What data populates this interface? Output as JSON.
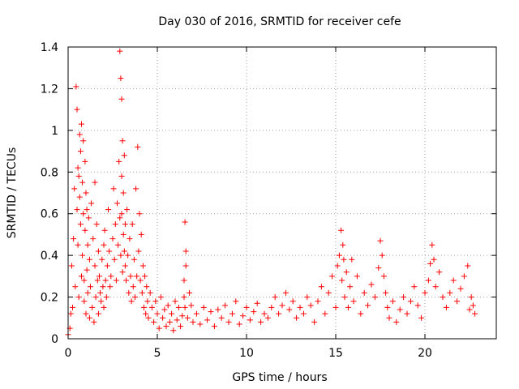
{
  "chart_data": {
    "type": "scatter",
    "title": "Day 030 of 2016, SRMTID for receiver cefe",
    "xlabel": "GPS time / hours",
    "ylabel": "SRMTID / TECUs",
    "xlim": [
      0,
      24
    ],
    "ylim": [
      0,
      1.4
    ],
    "x_ticks": [
      0,
      5,
      10,
      15,
      20
    ],
    "x_tick_labels": [
      "0",
      "5",
      "10",
      "15",
      "20"
    ],
    "y_ticks": [
      0,
      0.2,
      0.4,
      0.6,
      0.8,
      1.0,
      1.2,
      1.4
    ],
    "y_tick_labels": [
      "0",
      "0.2",
      "0.4",
      "0.6",
      "0.8",
      "1",
      "1.2",
      "1.4"
    ],
    "grid": true,
    "marker": "plus",
    "series": [
      {
        "name": "SRMTID",
        "color": "#ff0000",
        "x": [
          0.0,
          0.1,
          0.15,
          0.2,
          0.25,
          0.3,
          0.35,
          0.4,
          0.45,
          0.5,
          0.5,
          0.55,
          0.55,
          0.6,
          0.6,
          0.65,
          0.65,
          0.7,
          0.7,
          0.75,
          0.75,
          0.8,
          0.8,
          0.85,
          0.85,
          0.9,
          0.9,
          0.95,
          0.95,
          1.0,
          1.0,
          1.05,
          1.05,
          1.1,
          1.1,
          1.15,
          1.2,
          1.2,
          1.25,
          1.3,
          1.35,
          1.4,
          1.45,
          1.5,
          1.5,
          1.55,
          1.6,
          1.65,
          1.7,
          1.7,
          1.75,
          1.8,
          1.85,
          1.9,
          1.95,
          2.0,
          2.0,
          2.05,
          2.1,
          2.15,
          2.2,
          2.25,
          2.3,
          2.35,
          2.4,
          2.5,
          2.55,
          2.6,
          2.65,
          2.7,
          2.75,
          2.8,
          2.85,
          2.9,
          2.9,
          2.95,
          2.95,
          3.0,
          3.0,
          3.0,
          3.05,
          3.05,
          3.1,
          3.1,
          3.15,
          3.15,
          3.2,
          3.2,
          3.25,
          3.3,
          3.35,
          3.4,
          3.45,
          3.5,
          3.55,
          3.6,
          3.65,
          3.7,
          3.75,
          3.8,
          3.85,
          3.9,
          3.95,
          4.0,
          4.05,
          4.1,
          4.15,
          4.2,
          4.25,
          4.3,
          4.35,
          4.4,
          4.45,
          4.5,
          4.6,
          4.7,
          4.8,
          4.9,
          5.0,
          5.1,
          5.2,
          5.3,
          5.4,
          5.5,
          5.6,
          5.7,
          5.8,
          5.9,
          6.0,
          6.1,
          6.2,
          6.3,
          6.4,
          6.5,
          6.5,
          6.55,
          6.55,
          6.6,
          6.6,
          6.7,
          6.8,
          6.9,
          7.0,
          7.2,
          7.4,
          7.6,
          7.8,
          8.0,
          8.2,
          8.4,
          8.6,
          8.8,
          9.0,
          9.2,
          9.4,
          9.6,
          9.8,
          10.0,
          10.2,
          10.4,
          10.6,
          10.8,
          11.0,
          11.2,
          11.4,
          11.6,
          11.8,
          12.0,
          12.2,
          12.4,
          12.6,
          12.8,
          13.0,
          13.2,
          13.4,
          13.6,
          13.8,
          14.0,
          14.2,
          14.4,
          14.6,
          14.8,
          15.0,
          15.1,
          15.2,
          15.3,
          15.35,
          15.4,
          15.45,
          15.5,
          15.6,
          15.7,
          15.8,
          15.9,
          16.0,
          16.2,
          16.4,
          16.6,
          16.8,
          17.0,
          17.2,
          17.4,
          17.5,
          17.6,
          17.7,
          17.8,
          17.9,
          18.0,
          18.2,
          18.4,
          18.6,
          18.8,
          19.0,
          19.2,
          19.4,
          19.6,
          19.8,
          20.0,
          20.2,
          20.3,
          20.4,
          20.5,
          20.6,
          20.8,
          21.0,
          21.2,
          21.4,
          21.6,
          21.8,
          22.0,
          22.2,
          22.4,
          22.5,
          22.6,
          22.7,
          22.8
        ],
        "y": [
          0.02,
          0.05,
          0.12,
          0.35,
          0.15,
          0.48,
          0.72,
          0.25,
          1.21,
          0.62,
          1.1,
          0.45,
          0.82,
          0.78,
          0.2,
          0.68,
          0.98,
          0.55,
          0.9,
          1.03,
          0.3,
          0.75,
          0.4,
          0.6,
          0.95,
          0.28,
          0.18,
          0.52,
          0.85,
          0.7,
          0.12,
          0.33,
          0.62,
          0.22,
          0.45,
          0.58,
          0.1,
          0.38,
          0.25,
          0.65,
          0.15,
          0.48,
          0.08,
          0.75,
          0.35,
          0.2,
          0.55,
          0.28,
          0.12,
          0.42,
          0.3,
          0.22,
          0.18,
          0.38,
          0.25,
          0.15,
          0.45,
          0.52,
          0.28,
          0.2,
          0.35,
          0.62,
          0.42,
          0.25,
          0.3,
          0.48,
          0.72,
          0.38,
          0.55,
          0.28,
          0.65,
          0.45,
          0.85,
          0.58,
          1.38,
          1.25,
          0.4,
          1.15,
          0.78,
          0.6,
          0.95,
          0.32,
          0.7,
          0.5,
          0.88,
          0.42,
          0.35,
          0.55,
          0.28,
          0.62,
          0.4,
          0.22,
          0.48,
          0.3,
          0.18,
          0.55,
          0.25,
          0.38,
          0.2,
          0.72,
          0.3,
          0.92,
          0.42,
          0.6,
          0.28,
          0.5,
          0.22,
          0.35,
          0.15,
          0.3,
          0.12,
          0.25,
          0.18,
          0.1,
          0.22,
          0.15,
          0.08,
          0.18,
          0.12,
          0.05,
          0.2,
          0.1,
          0.14,
          0.06,
          0.16,
          0.08,
          0.12,
          0.04,
          0.18,
          0.09,
          0.15,
          0.06,
          0.11,
          0.2,
          0.28,
          0.56,
          0.15,
          0.42,
          0.35,
          0.1,
          0.22,
          0.16,
          0.08,
          0.12,
          0.07,
          0.15,
          0.09,
          0.13,
          0.06,
          0.14,
          0.1,
          0.16,
          0.08,
          0.12,
          0.18,
          0.07,
          0.11,
          0.15,
          0.09,
          0.13,
          0.17,
          0.08,
          0.12,
          0.1,
          0.15,
          0.2,
          0.12,
          0.16,
          0.22,
          0.14,
          0.18,
          0.1,
          0.15,
          0.12,
          0.2,
          0.16,
          0.08,
          0.18,
          0.25,
          0.12,
          0.22,
          0.3,
          0.15,
          0.35,
          0.4,
          0.52,
          0.28,
          0.45,
          0.38,
          0.2,
          0.32,
          0.15,
          0.25,
          0.38,
          0.18,
          0.3,
          0.12,
          0.22,
          0.16,
          0.26,
          0.2,
          0.34,
          0.47,
          0.4,
          0.3,
          0.22,
          0.15,
          0.1,
          0.18,
          0.08,
          0.14,
          0.2,
          0.12,
          0.18,
          0.25,
          0.16,
          0.1,
          0.22,
          0.28,
          0.36,
          0.45,
          0.38,
          0.25,
          0.32,
          0.2,
          0.15,
          0.22,
          0.28,
          0.18,
          0.24,
          0.3,
          0.35,
          0.14,
          0.2,
          0.16,
          0.12
        ]
      }
    ]
  }
}
